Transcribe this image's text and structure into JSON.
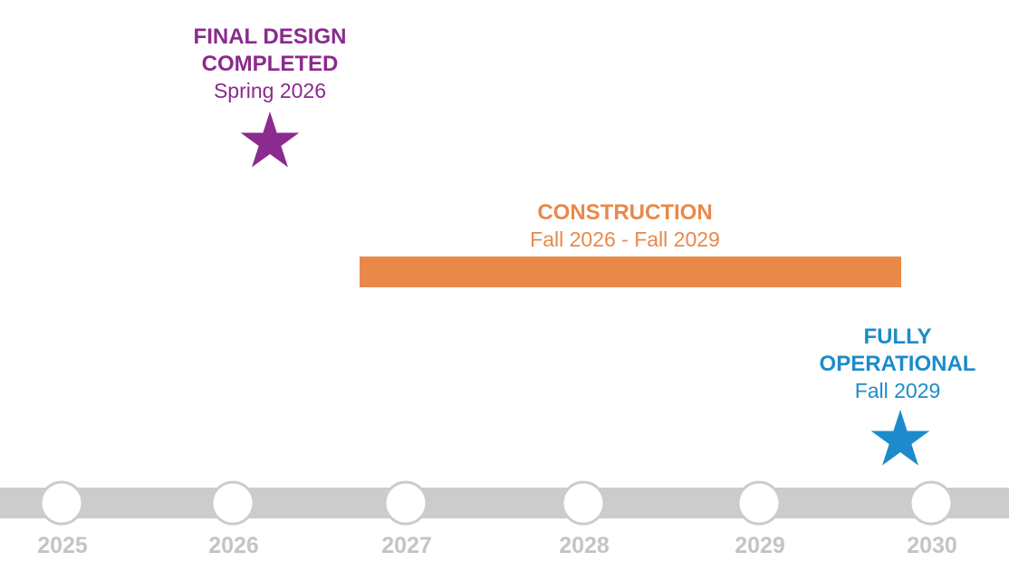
{
  "colors": {
    "design": "#8b2a8f",
    "construction": "#e8894a",
    "operational": "#1d8bcb",
    "track": "#cccccc",
    "node_fill": "#ffffff",
    "year_text": "#c4c4c4"
  },
  "axis": {
    "years": [
      "2025",
      "2026",
      "2027",
      "2028",
      "2029",
      "2030"
    ]
  },
  "milestones": {
    "final_design": {
      "line1": "FINAL DESIGN",
      "line2": "COMPLETED",
      "date": "Spring 2026",
      "icon": "star-icon"
    },
    "fully_operational": {
      "line1": "FULLY",
      "line2": "OPERATIONAL",
      "date": "Fall 2029",
      "icon": "star-icon"
    }
  },
  "phases": {
    "construction": {
      "title": "CONSTRUCTION",
      "date": "Fall 2026 - Fall 2029"
    }
  }
}
